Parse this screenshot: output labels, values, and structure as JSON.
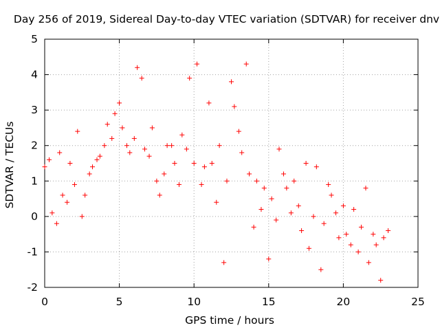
{
  "chart_data": {
    "type": "scatter",
    "title": "Day 256 of 2019, Sidereal Day-to-day VTEC variation (SDTVAR) for receiver dnvk",
    "xlabel": "GPS time / hours",
    "ylabel": "SDTVAR / TECUs",
    "xlim": [
      0,
      25
    ],
    "ylim": [
      -2,
      5
    ],
    "xticks": [
      0,
      5,
      10,
      15,
      20,
      25
    ],
    "yticks": [
      -2,
      -1,
      0,
      1,
      2,
      3,
      4,
      5
    ],
    "grid": true,
    "marker": "+",
    "marker_color": "#ff0000",
    "series": [
      {
        "name": "SDTVAR",
        "x": [
          0.0,
          0.3,
          0.5,
          0.8,
          1.0,
          1.2,
          1.5,
          1.7,
          2.0,
          2.2,
          2.5,
          2.7,
          3.0,
          3.2,
          3.5,
          3.7,
          4.0,
          4.2,
          4.5,
          4.7,
          5.0,
          5.2,
          5.5,
          5.7,
          6.0,
          6.2,
          6.5,
          6.7,
          7.0,
          7.2,
          7.5,
          7.7,
          8.0,
          8.2,
          8.5,
          8.7,
          9.0,
          9.2,
          9.5,
          9.7,
          10.0,
          10.2,
          10.5,
          10.7,
          11.0,
          11.2,
          11.5,
          11.7,
          12.0,
          12.2,
          12.5,
          12.7,
          13.0,
          13.2,
          13.5,
          13.7,
          14.0,
          14.2,
          14.5,
          14.7,
          15.0,
          15.2,
          15.5,
          15.7,
          16.0,
          16.2,
          16.5,
          16.7,
          17.0,
          17.2,
          17.5,
          17.7,
          18.0,
          18.2,
          18.5,
          18.7,
          19.0,
          19.2,
          19.5,
          19.7,
          20.0,
          20.2,
          20.5,
          20.7,
          21.0,
          21.2,
          21.5,
          21.7,
          22.0,
          22.2,
          22.5,
          22.7,
          23.0
        ],
        "y": [
          1.4,
          1.6,
          0.1,
          -0.2,
          1.8,
          0.6,
          0.4,
          1.5,
          0.9,
          2.4,
          0.0,
          0.6,
          1.2,
          1.4,
          1.6,
          1.7,
          2.0,
          2.6,
          2.2,
          2.9,
          3.2,
          2.5,
          2.0,
          1.8,
          2.2,
          4.2,
          3.9,
          1.9,
          1.7,
          2.5,
          1.0,
          0.6,
          1.2,
          2.0,
          2.0,
          1.5,
          0.9,
          2.3,
          1.9,
          3.9,
          1.5,
          4.3,
          0.9,
          1.4,
          3.2,
          1.5,
          0.4,
          2.0,
          -1.3,
          1.0,
          3.8,
          3.1,
          2.4,
          1.8,
          4.3,
          1.2,
          -0.3,
          1.0,
          0.2,
          0.8,
          -1.2,
          0.5,
          -0.1,
          1.9,
          1.2,
          0.8,
          0.1,
          1.0,
          0.3,
          -0.4,
          1.5,
          -0.9,
          0.0,
          1.4,
          -1.5,
          -0.2,
          0.9,
          0.6,
          0.1,
          -0.6,
          0.3,
          -0.5,
          -0.8,
          0.2,
          -1.0,
          -0.3,
          0.8,
          -1.3,
          -0.5,
          -0.8,
          -1.8,
          -0.6,
          -0.4
        ]
      }
    ]
  }
}
